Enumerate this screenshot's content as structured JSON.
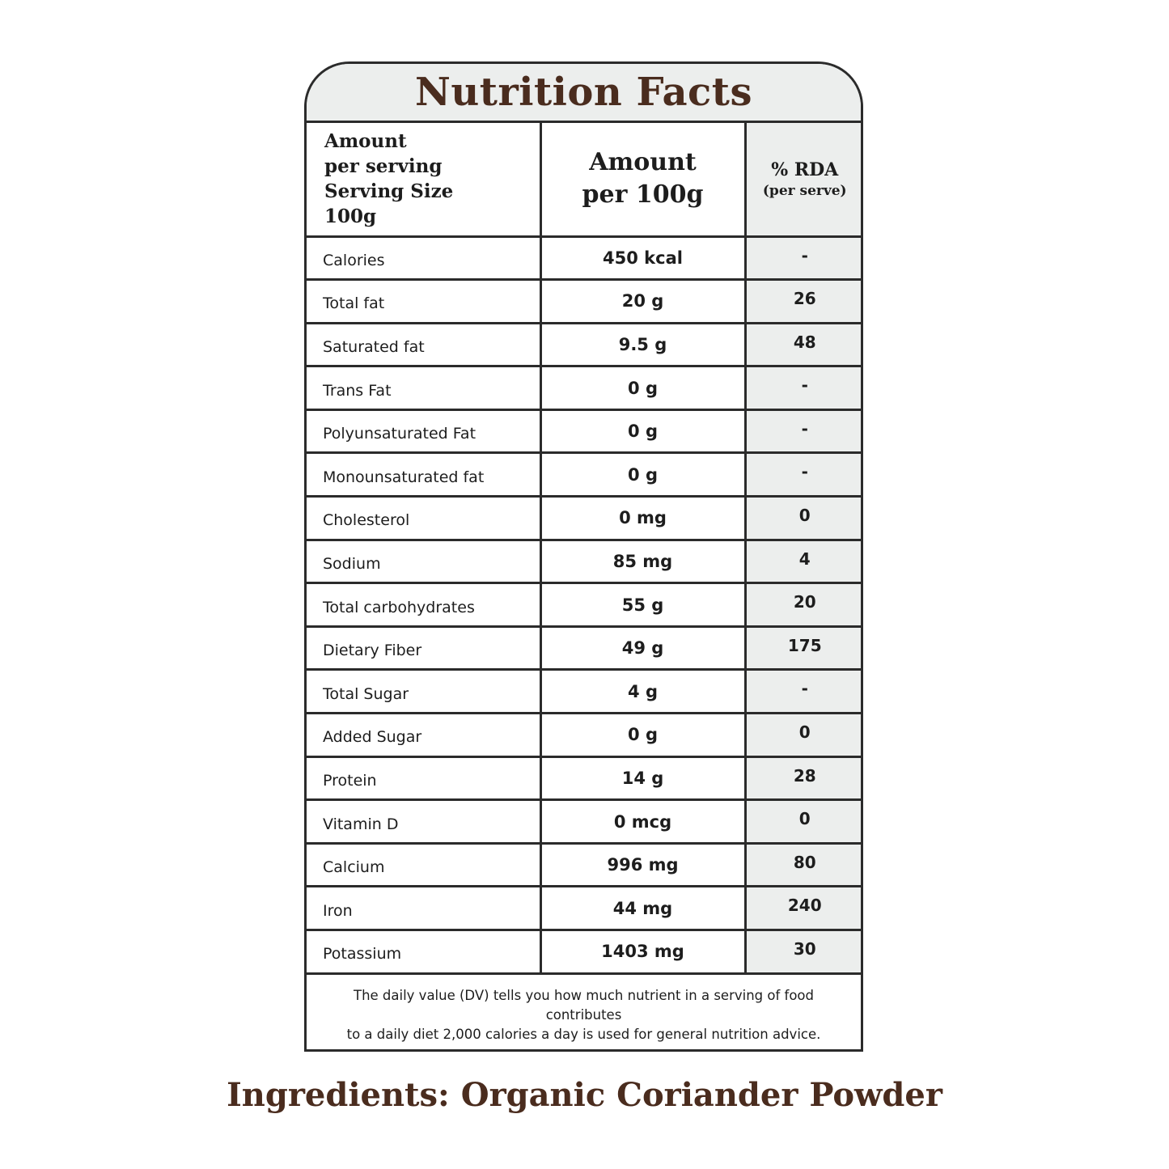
{
  "title": "Nutrition Facts",
  "header": {
    "col1_lines": [
      "Amount",
      "per serving",
      "Serving Size",
      "100g"
    ],
    "col2_lines": [
      "Amount",
      "per 100g"
    ],
    "col3_title": "% RDA",
    "col3_sub": "(per serve)"
  },
  "rows": [
    {
      "name": "Calories",
      "amount": "450 kcal",
      "rda": "-"
    },
    {
      "name": "Total fat",
      "amount": "20 g",
      "rda": "26"
    },
    {
      "name": "Saturated fat",
      "amount": "9.5 g",
      "rda": "48"
    },
    {
      "name": "Trans Fat",
      "amount": "0 g",
      "rda": "-"
    },
    {
      "name": "Polyunsaturated Fat",
      "amount": "0 g",
      "rda": "-"
    },
    {
      "name": "Monounsaturated fat",
      "amount": "0 g",
      "rda": "-"
    },
    {
      "name": "Cholesterol",
      "amount": "0 mg",
      "rda": "0"
    },
    {
      "name": "Sodium",
      "amount": "85 mg",
      "rda": "4"
    },
    {
      "name": "Total carbohydrates",
      "amount": "55 g",
      "rda": "20"
    },
    {
      "name": "Dietary Fiber",
      "amount": "49 g",
      "rda": "175"
    },
    {
      "name": "Total Sugar",
      "amount": "4 g",
      "rda": "-"
    },
    {
      "name": "Added Sugar",
      "amount": "0 g",
      "rda": "0"
    },
    {
      "name": "Protein",
      "amount": "14 g",
      "rda": "28"
    },
    {
      "name": "Vitamin D",
      "amount": "0 mcg",
      "rda": "0"
    },
    {
      "name": "Calcium",
      "amount": "996 mg",
      "rda": "80"
    },
    {
      "name": "Iron",
      "amount": "44 mg",
      "rda": "240"
    },
    {
      "name": "Potassium",
      "amount": "1403 mg",
      "rda": "30"
    }
  ],
  "footnote_lines": [
    "The daily value (DV) tells you how much nutrient in a serving of food contributes",
    "to a daily diet 2,000 calories a day is used for general nutrition advice."
  ],
  "ingredients": "Ingredients: Organic Coriander Powder",
  "colors": {
    "brown_text": "#4a2c1e",
    "shade": "#eceeed",
    "border": "#2b2b2b"
  }
}
